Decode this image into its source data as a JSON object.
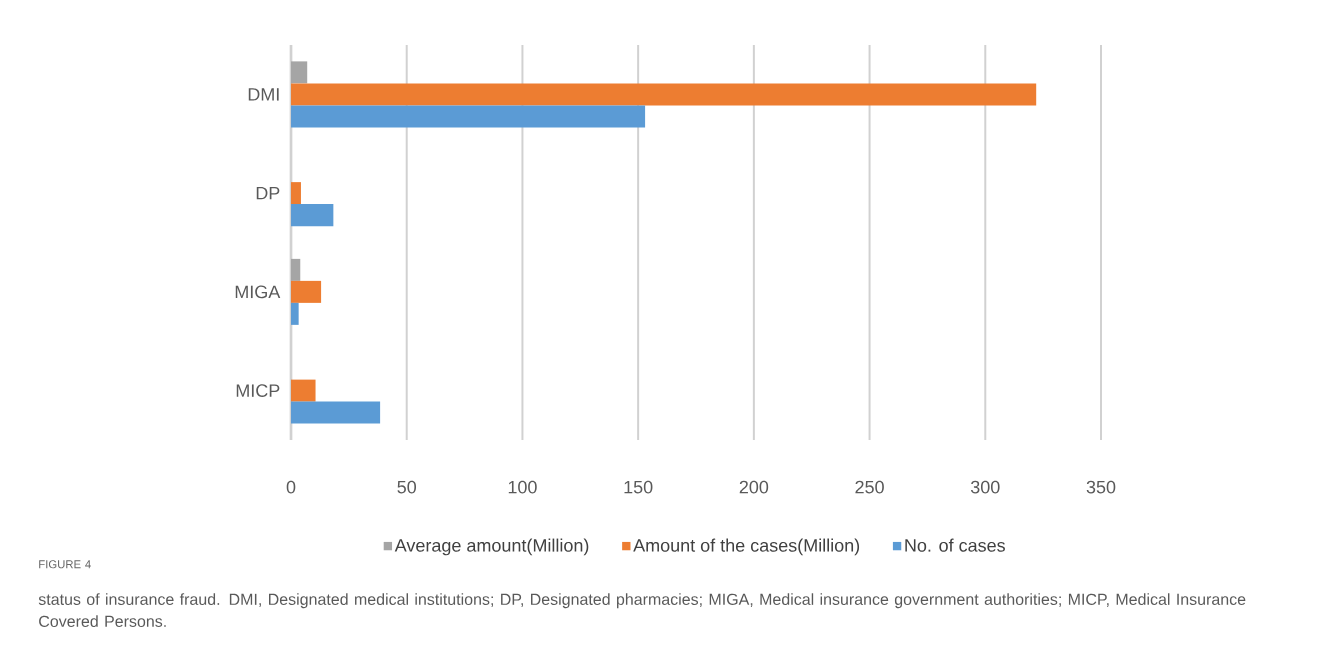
{
  "chart_data": {
    "type": "bar",
    "orientation": "horizontal",
    "categories": [
      "DMI",
      "DP",
      "MIGA",
      "MICP"
    ],
    "series": [
      {
        "name": "Average amount(Million)",
        "color": "#a5a5a5",
        "values": [
          7,
          null,
          4,
          null
        ]
      },
      {
        "name": "Amount of the cases(Million)",
        "color": "#ed7d31",
        "values": [
          322,
          4.3,
          13,
          10.6
        ]
      },
      {
        "name": "No. of cases",
        "color": "#5b9bd5",
        "values": [
          153,
          18.3,
          3.3,
          38.5
        ]
      }
    ],
    "xlim": [
      0,
      350
    ],
    "xticks": [
      0,
      50,
      100,
      150,
      200,
      250,
      300,
      350
    ],
    "grid": "x",
    "legend": "bottom",
    "annotations": [
      "FIGURE 4",
      "status of insurance fraud. DMI, Designated medical institutions; DP, Designated pharmacies; MIGA, Medical insurance government authorities; MICP, Medical Insurance Covered Persons."
    ]
  }
}
